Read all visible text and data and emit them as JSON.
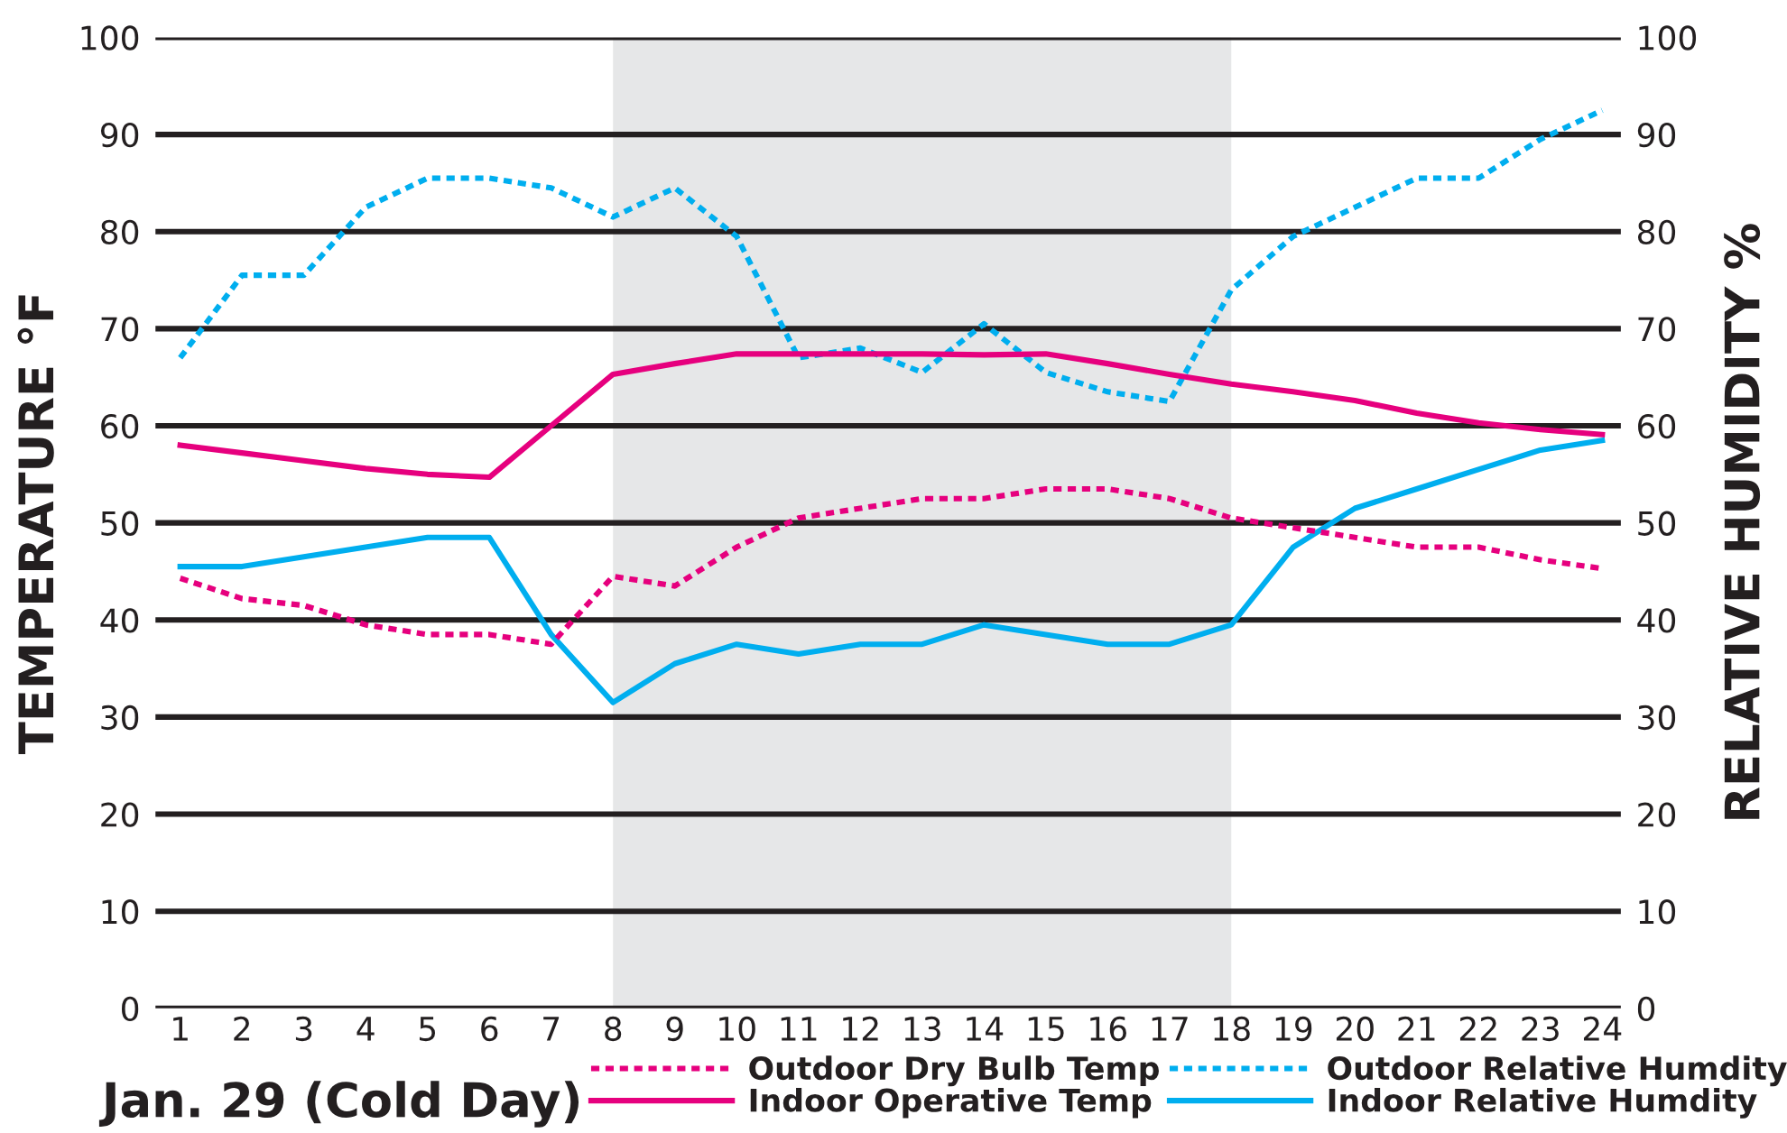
{
  "chart_data": {
    "type": "line",
    "title": "Jan. 29 (Cold Day)",
    "ylabel": "TEMPERATURE °F",
    "y2label": "RELATIVE HUMIDITY %",
    "x": [
      1,
      2,
      3,
      4,
      5,
      6,
      7,
      8,
      9,
      10,
      11,
      12,
      13,
      14,
      15,
      16,
      17,
      18,
      19,
      20,
      21,
      22,
      23,
      24
    ],
    "series": [
      {
        "name": "Outdoor Dry Bulb Temp",
        "color": "#e6007e",
        "line_style": "dotted",
        "values": [
          44.3,
          42.2,
          41.5,
          39.5,
          38.5,
          38.5,
          37.5,
          44.5,
          43.5,
          47.5,
          50.5,
          51.5,
          52.5,
          52.5,
          53.5,
          53.5,
          52.5,
          50.5,
          49.5,
          48.5,
          47.5,
          47.5,
          46.2,
          45.3
        ]
      },
      {
        "name": "Indoor Operative Temp",
        "color": "#e6007e",
        "line_style": "solid",
        "values": [
          58,
          57.2,
          56.4,
          55.6,
          55,
          54.7,
          60,
          65.3,
          66.4,
          67.4,
          67.4,
          67.4,
          67.4,
          67.3,
          67.4,
          66.4,
          65.3,
          64.3,
          63.5,
          62.6,
          61.3,
          60.3,
          59.6,
          59.1
        ]
      },
      {
        "name": "Outdoor Relative Humdity",
        "color": "#00aeef",
        "line_style": "dotted",
        "axis": "y2",
        "values": [
          67,
          75.5,
          75.5,
          82.5,
          85.5,
          85.5,
          84.5,
          81.5,
          84.5,
          79.5,
          67,
          68,
          65.5,
          70.5,
          65.5,
          63.5,
          62.5,
          74,
          79.5,
          82.5,
          85.5,
          85.5,
          89.5,
          92.5
        ]
      },
      {
        "name": "Indoor Relative Humdity",
        "color": "#00aeef",
        "line_style": "solid",
        "axis": "y2",
        "values": [
          45.5,
          45.5,
          46.5,
          47.5,
          48.5,
          48.5,
          38.5,
          31.5,
          35.5,
          37.5,
          36.5,
          37.5,
          37.5,
          39.5,
          38.5,
          37.5,
          37.5,
          39.5,
          47.5,
          51.5,
          53.5,
          55.5,
          57.5,
          58.5
        ]
      }
    ],
    "xlim": [
      0.6,
      24.3
    ],
    "xticks": [
      1,
      2,
      3,
      4,
      5,
      6,
      7,
      8,
      9,
      10,
      11,
      12,
      13,
      14,
      15,
      16,
      17,
      18,
      19,
      20,
      21,
      22,
      23,
      24
    ],
    "ylim": [
      0,
      100
    ],
    "yticks": [
      0,
      10,
      20,
      30,
      40,
      50,
      60,
      70,
      80,
      90,
      100
    ],
    "y2lim": [
      0,
      100
    ],
    "y2ticks": [
      0,
      10,
      20,
      30,
      40,
      50,
      60,
      70,
      80,
      90,
      100
    ],
    "bands": [
      {
        "axis": "x",
        "from": 8,
        "to": 18,
        "color": "#e6e7e8"
      }
    ],
    "grid": "y",
    "legend": "bottom",
    "marker": "none"
  }
}
